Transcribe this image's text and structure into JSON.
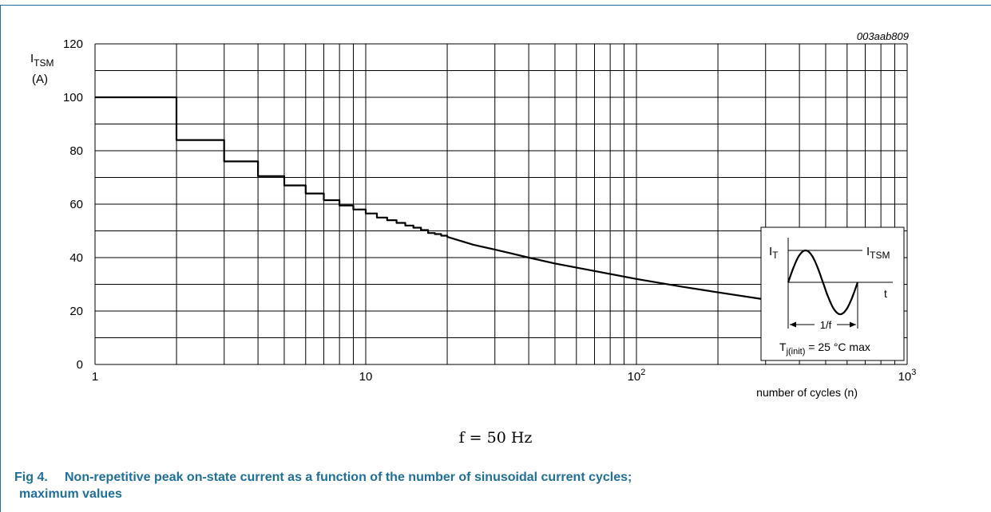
{
  "figure": {
    "number": "Fig 4.",
    "caption": "Non-repetitive peak on-state current as a function of the number of sinusoidal current cycles;",
    "caption_line2": "maximum values",
    "id_code": "003aab809",
    "note": "f = 50 Hz"
  },
  "chart_data": {
    "type": "line",
    "x_scale": "log",
    "xlim": [
      1,
      1000
    ],
    "ylim": [
      0,
      120
    ],
    "xlabel": "number of cycles (n)",
    "ylabel_main": "I",
    "ylabel_sub": "TSM",
    "ylabel_unit": "(A)",
    "y_ticks": [
      "0",
      "20",
      "40",
      "60",
      "80",
      "100",
      "120"
    ],
    "x_ticks": [
      {
        "base": "1",
        "exp": ""
      },
      {
        "base": "10",
        "exp": ""
      },
      {
        "base": "10",
        "exp": "2"
      },
      {
        "base": "10",
        "exp": "3"
      }
    ],
    "grid": true,
    "series": [
      {
        "style": "step_then_curve",
        "steps": [
          [
            1,
            100
          ],
          [
            2,
            84
          ],
          [
            3,
            76
          ],
          [
            4,
            70.5
          ],
          [
            5,
            67
          ],
          [
            6,
            64
          ],
          [
            7,
            61.5
          ],
          [
            8,
            59.5
          ],
          [
            9,
            58
          ],
          [
            10,
            56.5
          ],
          [
            11,
            55
          ],
          [
            12,
            54
          ],
          [
            13,
            53
          ],
          [
            14,
            52
          ],
          [
            15,
            51.2
          ],
          [
            16,
            50.3
          ],
          [
            17,
            49.2
          ],
          [
            18,
            48.8
          ],
          [
            19,
            48.2
          ],
          [
            20,
            47.8
          ]
        ],
        "curve": [
          [
            20,
            47.8
          ],
          [
            25,
            44.8
          ],
          [
            30,
            43
          ],
          [
            40,
            40
          ],
          [
            50,
            37.8
          ],
          [
            70,
            35
          ],
          [
            100,
            32
          ],
          [
            150,
            29
          ],
          [
            200,
            27
          ],
          [
            300,
            24.3
          ]
        ]
      }
    ],
    "inset": {
      "label_it_main": "I",
      "label_it_sub": "T",
      "label_itsm_main": "I",
      "label_itsm_sub": "TSM",
      "label_t": "t",
      "label_period": "1/f",
      "label_temp_main": "T",
      "label_temp_sub": "j(init)",
      "label_temp_rest": " = 25 °C max"
    }
  }
}
